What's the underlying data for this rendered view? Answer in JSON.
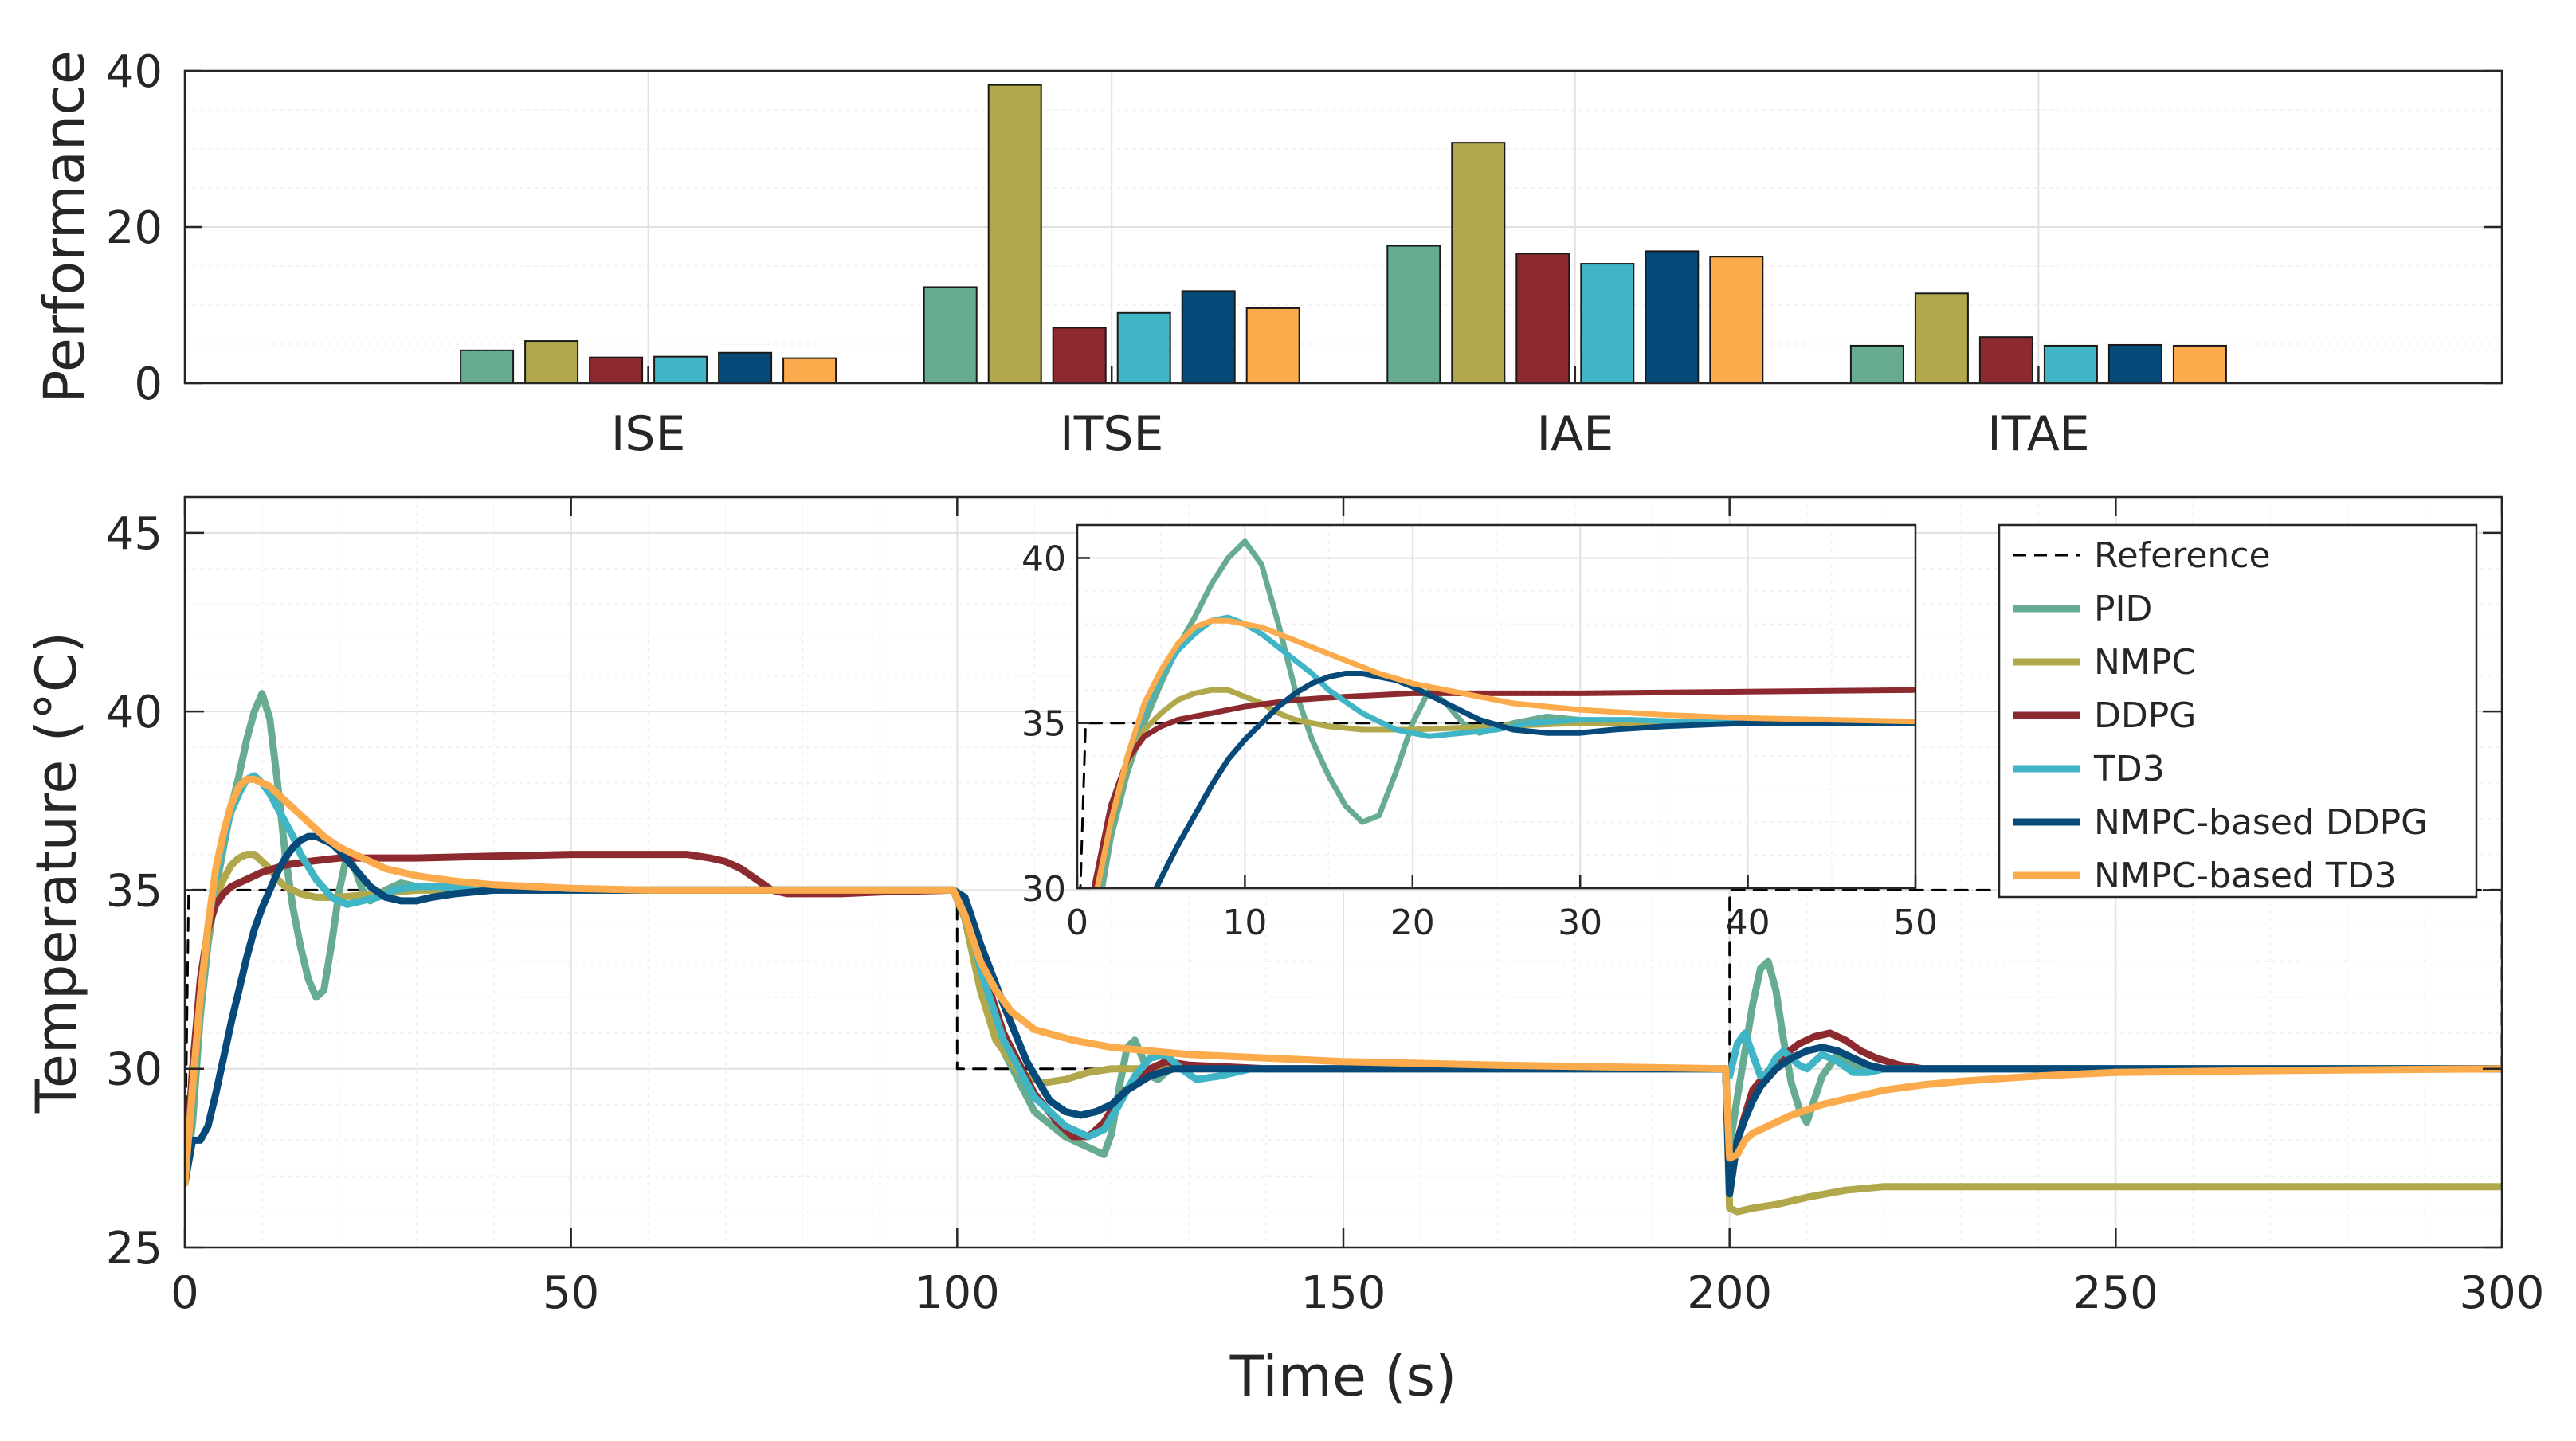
{
  "chart_data": [
    {
      "type": "bar",
      "ylabel": "Performance",
      "xlabel": "",
      "ylim": [
        0,
        40
      ],
      "yticks": [
        0,
        20,
        40
      ],
      "grid": true,
      "categories": [
        "ISE",
        "ITSE",
        "IAE",
        "ITAE"
      ],
      "series": [
        {
          "name": "PID",
          "color": "#67ac91",
          "values": [
            4.2,
            12.3,
            17.6,
            4.8
          ]
        },
        {
          "name": "NMPC",
          "color": "#b1a84c",
          "values": [
            5.4,
            38.2,
            30.8,
            11.5
          ]
        },
        {
          "name": "DDPG",
          "color": "#8d2a2f",
          "values": [
            3.3,
            7.1,
            16.6,
            5.9
          ]
        },
        {
          "name": "TD3",
          "color": "#3fb5c6",
          "values": [
            3.4,
            9.0,
            15.3,
            4.8
          ]
        },
        {
          "name": "NMPC-based DDPG",
          "color": "#074a7a",
          "values": [
            3.9,
            11.8,
            16.9,
            4.9
          ]
        },
        {
          "name": "NMPC-based TD3",
          "color": "#fbab4b",
          "values": [
            3.2,
            9.6,
            16.2,
            4.8
          ]
        }
      ]
    },
    {
      "type": "line",
      "xlabel": "Time (s)",
      "ylabel": "Temperature (°C)",
      "xlim": [
        0,
        300
      ],
      "ylim": [
        25,
        46
      ],
      "xticks": [
        0,
        50,
        100,
        150,
        200,
        250,
        300
      ],
      "yticks": [
        25,
        30,
        35,
        40,
        45
      ],
      "grid": true,
      "legend_position": "top-right",
      "series": [
        {
          "name": "Reference",
          "color": "#000000",
          "dash": true,
          "x": [
            0,
            0.5,
            100,
            100,
            200,
            200,
            300,
            300
          ],
          "y": [
            27,
            35,
            35,
            30,
            30,
            35,
            35,
            30
          ]
        },
        {
          "name": "PID",
          "color": "#67ac91",
          "x": [
            0,
            1,
            2,
            3,
            4,
            5,
            6,
            7,
            8,
            9,
            10,
            11,
            12,
            13,
            14,
            15,
            16,
            17,
            18,
            19,
            20,
            21,
            22,
            23,
            24,
            26,
            28,
            30,
            35,
            40,
            50,
            60,
            70,
            80,
            90,
            99.5,
            101,
            103,
            106,
            110,
            114,
            116,
            118,
            119,
            120,
            121,
            122,
            123,
            124,
            125,
            126,
            127,
            128,
            130,
            135,
            140,
            150,
            170,
            199.5,
            200,
            201,
            202,
            203,
            204,
            205,
            206,
            207,
            208,
            209,
            210,
            212,
            214,
            216,
            218,
            220,
            225,
            230,
            250,
            300
          ],
          "y": [
            26.8,
            28.5,
            31.5,
            33.5,
            35,
            36.2,
            37.3,
            38.2,
            39.2,
            40,
            40.5,
            39.8,
            38,
            36,
            34.5,
            33.4,
            32.5,
            32,
            32.2,
            33.5,
            35,
            36,
            35.6,
            35,
            34.7,
            35,
            35.2,
            35.1,
            35,
            35,
            35,
            35,
            35,
            35,
            35,
            35,
            34.6,
            32.5,
            30.5,
            28.8,
            28.1,
            27.9,
            27.7,
            27.6,
            28.2,
            29.5,
            30.6,
            30.8,
            30.3,
            29.8,
            29.7,
            29.9,
            30.1,
            30.1,
            30,
            30,
            30,
            30,
            30,
            27.8,
            29.2,
            30.5,
            31.8,
            32.8,
            33,
            32.2,
            30.8,
            29.6,
            28.9,
            28.5,
            29.8,
            30.4,
            30.1,
            30,
            30,
            30,
            30,
            30,
            30
          ]
        },
        {
          "name": "NMPC",
          "color": "#b1a84c",
          "x": [
            0,
            1,
            2,
            3,
            4,
            5,
            6,
            7,
            8,
            9,
            10,
            11,
            12,
            13,
            15,
            17,
            20,
            25,
            30,
            40,
            50,
            70,
            99.5,
            101,
            103,
            105,
            108,
            111,
            114,
            117,
            120,
            125,
            130,
            140,
            150,
            199.5,
            200,
            201,
            203,
            206,
            210,
            215,
            220,
            240,
            260,
            300
          ],
          "y": [
            26.8,
            29.5,
            32,
            33.8,
            34.8,
            35.3,
            35.7,
            35.9,
            36,
            36,
            35.8,
            35.6,
            35.3,
            35.1,
            34.9,
            34.8,
            34.8,
            34.9,
            35,
            35,
            35,
            35,
            35,
            34.2,
            32.2,
            30.8,
            29.9,
            29.6,
            29.7,
            29.9,
            30,
            30,
            30,
            30,
            30,
            30,
            26.1,
            26,
            26.1,
            26.2,
            26.4,
            26.6,
            26.7,
            26.7,
            26.7,
            26.7
          ]
        },
        {
          "name": "DDPG",
          "color": "#8d2a2f",
          "x": [
            0,
            1,
            2,
            3,
            4,
            5,
            6,
            8,
            10,
            13,
            16,
            20,
            25,
            30,
            40,
            50,
            60,
            65,
            68,
            70,
            72,
            74,
            76,
            78,
            80,
            85,
            90,
            99.5,
            101,
            103,
            106,
            110,
            113,
            115,
            117,
            119,
            121,
            124,
            127,
            130,
            140,
            150,
            199.5,
            200,
            201,
            203,
            206,
            209,
            211,
            213,
            215,
            217,
            219,
            222,
            225,
            230,
            240,
            300
          ],
          "y": [
            26.8,
            30,
            32.5,
            33.9,
            34.6,
            34.9,
            35.1,
            35.3,
            35.5,
            35.7,
            35.8,
            35.9,
            35.9,
            35.9,
            35.95,
            36,
            36,
            36,
            35.9,
            35.8,
            35.6,
            35.3,
            35,
            34.9,
            34.9,
            34.9,
            34.95,
            35,
            34.7,
            33,
            31,
            29.3,
            28.5,
            28.1,
            28.1,
            28.5,
            29.2,
            29.9,
            30.2,
            30.1,
            30,
            30,
            30,
            26.5,
            28,
            29.4,
            30.2,
            30.7,
            30.9,
            31,
            30.8,
            30.5,
            30.3,
            30.1,
            30,
            30,
            30,
            30
          ]
        },
        {
          "name": "TD3",
          "color": "#3fb5c6",
          "x": [
            0,
            1,
            2,
            3,
            4,
            5,
            6,
            7,
            8,
            9,
            10,
            11,
            12,
            13,
            14,
            15,
            17,
            19,
            21,
            23,
            25,
            27,
            30,
            33,
            36,
            40,
            50,
            70,
            99.5,
            101,
            103,
            106,
            110,
            114,
            117,
            119,
            121,
            123,
            125,
            127,
            129,
            131,
            134,
            138,
            145,
            150,
            199.5,
            200,
            201,
            202,
            203,
            204,
            205,
            206,
            207,
            208,
            209,
            210,
            211,
            212,
            214,
            216,
            218,
            220,
            225,
            230,
            300
          ],
          "y": [
            26.8,
            29.5,
            32,
            34,
            35.4,
            36.4,
            37.2,
            37.7,
            38.1,
            38.2,
            38,
            37.7,
            37.3,
            36.9,
            36.5,
            36,
            35.3,
            34.8,
            34.6,
            34.7,
            34.8,
            35,
            35.1,
            35.1,
            35.05,
            35,
            35,
            35,
            35,
            34.6,
            32.8,
            30.8,
            29.2,
            28.4,
            28.1,
            28.3,
            29,
            29.8,
            30.3,
            30.4,
            30,
            29.7,
            29.8,
            30,
            30,
            30,
            30,
            29.8,
            30.7,
            31,
            30.4,
            29.8,
            29.9,
            30.3,
            30.5,
            30.3,
            30.1,
            30,
            30.2,
            30.4,
            30.2,
            29.9,
            29.9,
            30,
            30,
            30,
            30
          ]
        },
        {
          "name": "NMPC-based DDPG",
          "color": "#074a7a",
          "x": [
            0,
            1,
            2,
            3,
            4,
            5,
            6,
            7,
            8,
            9,
            10,
            11,
            12,
            13,
            14,
            15,
            16,
            17,
            18,
            19,
            20,
            22,
            24,
            26,
            28,
            30,
            32,
            35,
            40,
            50,
            60,
            80,
            99.5,
            101,
            103,
            106,
            109,
            112,
            114,
            116,
            118,
            120,
            122,
            125,
            128,
            132,
            140,
            160,
            199.5,
            200,
            201,
            202,
            203,
            204,
            206,
            208,
            210,
            212,
            214,
            216,
            218,
            220,
            225,
            230,
            250,
            300
          ],
          "y": [
            26.8,
            28,
            28,
            28.4,
            29.3,
            30.3,
            31.3,
            32.2,
            33.1,
            33.9,
            34.5,
            35,
            35.5,
            35.9,
            36.2,
            36.4,
            36.5,
            36.5,
            36.4,
            36.3,
            36.1,
            35.6,
            35.1,
            34.8,
            34.7,
            34.7,
            34.8,
            34.9,
            35,
            35,
            35,
            35,
            35,
            34.8,
            33.5,
            31.8,
            30.2,
            29.1,
            28.8,
            28.7,
            28.8,
            29,
            29.4,
            29.8,
            30,
            30,
            30,
            30,
            30,
            26.5,
            28,
            28.6,
            29.1,
            29.5,
            30,
            30.3,
            30.5,
            30.6,
            30.5,
            30.3,
            30.1,
            30,
            30,
            30,
            30,
            30
          ]
        },
        {
          "name": "NMPC-based TD3",
          "color": "#fbab4b",
          "x": [
            0,
            1,
            2,
            3,
            4,
            5,
            6,
            7,
            8,
            9,
            10,
            11,
            12,
            14,
            16,
            18,
            20,
            23,
            26,
            30,
            35,
            40,
            45,
            50,
            60,
            70,
            80,
            99.5,
            101,
            103,
            105,
            107,
            110,
            115,
            120,
            130,
            140,
            150,
            170,
            199.5,
            200,
            201,
            202,
            203,
            205,
            208,
            212,
            216,
            220,
            225,
            230,
            240,
            250,
            270,
            300
          ],
          "y": [
            26.8,
            29.5,
            32,
            34,
            35.6,
            36.6,
            37.4,
            37.9,
            38.1,
            38.1,
            38,
            37.9,
            37.7,
            37.3,
            36.9,
            36.5,
            36.2,
            35.9,
            35.6,
            35.4,
            35.25,
            35.15,
            35.1,
            35.05,
            35,
            35,
            35,
            35,
            34.3,
            33,
            32.2,
            31.6,
            31.1,
            30.8,
            30.6,
            30.4,
            30.3,
            30.2,
            30.1,
            30,
            27.5,
            27.6,
            28,
            28.2,
            28.4,
            28.7,
            29,
            29.2,
            29.4,
            29.55,
            29.65,
            29.8,
            29.9,
            29.95,
            30
          ]
        }
      ],
      "inset": {
        "xlim": [
          0,
          50
        ],
        "ylim": [
          30,
          41
        ],
        "xticks": [
          0,
          10,
          20,
          30,
          40,
          50
        ],
        "yticks": [
          30,
          35,
          40
        ]
      }
    }
  ]
}
